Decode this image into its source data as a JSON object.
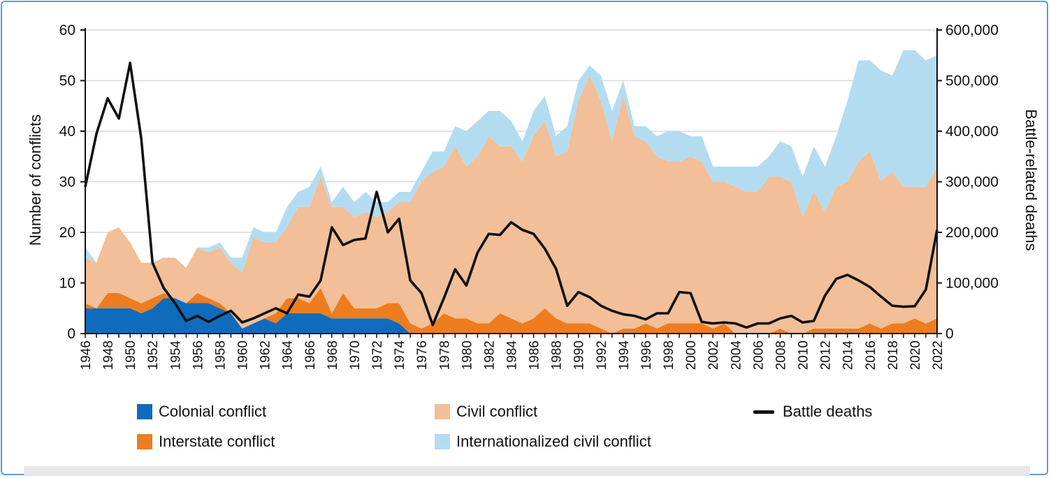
{
  "chart_data": {
    "type": "area",
    "xlabel": "",
    "ylabel": "Number of conflicts",
    "y2label": "Battle-related deaths",
    "ylim": [
      0,
      60
    ],
    "y2lim": [
      0,
      600000
    ],
    "yticks": [
      "0",
      "10",
      "20",
      "30",
      "40",
      "50",
      "60"
    ],
    "y2ticks": [
      "0",
      "100,000",
      "200,000",
      "300,000",
      "400,000",
      "500,000",
      "600,000"
    ],
    "grid": "horizontal",
    "legend_position": "bottom",
    "x": [
      1946,
      1947,
      1948,
      1949,
      1950,
      1951,
      1952,
      1953,
      1954,
      1955,
      1956,
      1957,
      1958,
      1959,
      1960,
      1961,
      1962,
      1963,
      1964,
      1965,
      1966,
      1967,
      1968,
      1969,
      1970,
      1971,
      1972,
      1973,
      1974,
      1975,
      1976,
      1977,
      1978,
      1979,
      1980,
      1981,
      1982,
      1983,
      1984,
      1985,
      1986,
      1987,
      1988,
      1989,
      1990,
      1991,
      1992,
      1993,
      1994,
      1995,
      1996,
      1997,
      1998,
      1999,
      2000,
      2001,
      2002,
      2003,
      2004,
      2005,
      2006,
      2007,
      2008,
      2009,
      2010,
      2011,
      2012,
      2013,
      2014,
      2015,
      2016,
      2017,
      2018,
      2019,
      2020,
      2021,
      2022
    ],
    "xticks": [
      "1946",
      "1948",
      "1950",
      "1952",
      "1954",
      "1956",
      "1958",
      "1960",
      "1962",
      "1964",
      "1966",
      "1968",
      "1970",
      "1972",
      "1974",
      "1976",
      "1978",
      "1980",
      "1982",
      "1984",
      "1986",
      "1988",
      "1990",
      "1992",
      "1994",
      "1996",
      "1998",
      "2000",
      "2002",
      "2004",
      "2006",
      "2008",
      "2010",
      "2012",
      "2014",
      "2016",
      "2018",
      "2020",
      "2022"
    ],
    "series": [
      {
        "name": "Colonial conflict",
        "color": "#0f6cbd",
        "kind": "stacked-area",
        "values": [
          5,
          5,
          5,
          5,
          5,
          4,
          5,
          7,
          7,
          6,
          6,
          6,
          5,
          4,
          1,
          2,
          3,
          2,
          4,
          4,
          4,
          4,
          3,
          3,
          3,
          3,
          3,
          3,
          2,
          0,
          0,
          0,
          0,
          0,
          0,
          0,
          0,
          0,
          0,
          0,
          0,
          0,
          0,
          0,
          0,
          0,
          0,
          0,
          0,
          0,
          0,
          0,
          0,
          0,
          0,
          0,
          0,
          0,
          0,
          0,
          0,
          0,
          0,
          0,
          0,
          0,
          0,
          0,
          0,
          0,
          0,
          0,
          0,
          0,
          0,
          0,
          0
        ]
      },
      {
        "name": "Interstate conflict",
        "color": "#ed7d1e",
        "kind": "stacked-area",
        "values": [
          1,
          0,
          3,
          3,
          2,
          2,
          2,
          1,
          0,
          0,
          2,
          1,
          1,
          0,
          0,
          0,
          0,
          2,
          3,
          3,
          2,
          5,
          1,
          5,
          2,
          2,
          2,
          3,
          4,
          2,
          1,
          2,
          4,
          3,
          3,
          2,
          2,
          4,
          3,
          2,
          3,
          5,
          3,
          2,
          2,
          2,
          1,
          0,
          1,
          1,
          2,
          1,
          2,
          2,
          2,
          2,
          1,
          2,
          0,
          0,
          0,
          0,
          1,
          0,
          0,
          1,
          1,
          1,
          1,
          1,
          2,
          1,
          2,
          2,
          3,
          2,
          3
        ]
      },
      {
        "name": "Civil conflict",
        "color": "#f2bf98",
        "kind": "stacked-area",
        "values": [
          9,
          9,
          12,
          13,
          11,
          8,
          7,
          7,
          8,
          7,
          9,
          9,
          11,
          10,
          11,
          17,
          15,
          14,
          14,
          18,
          19,
          22,
          21,
          17,
          18,
          19,
          18,
          18,
          20,
          24,
          29,
          30,
          29,
          34,
          30,
          33,
          37,
          33,
          34,
          32,
          36,
          37,
          32,
          34,
          44,
          49,
          45,
          38,
          46,
          38,
          36,
          34,
          32,
          32,
          33,
          32,
          29,
          28,
          29,
          28,
          28,
          31,
          30,
          30,
          23,
          27,
          23,
          28,
          29,
          33,
          34,
          29,
          30,
          27,
          26,
          27,
          30
        ]
      },
      {
        "name": "Internationalized civil conflict",
        "color": "#b4dcf0",
        "kind": "stacked-area",
        "values": [
          2,
          0,
          0,
          0,
          0,
          0,
          0,
          0,
          0,
          0,
          0,
          1,
          1,
          1,
          3,
          2,
          2,
          2,
          4,
          3,
          4,
          2,
          1,
          4,
          3,
          4,
          3,
          2,
          2,
          2,
          2,
          4,
          3,
          4,
          7,
          7,
          5,
          7,
          5,
          4,
          5,
          5,
          4,
          5,
          4,
          2,
          5,
          6,
          3,
          2,
          3,
          4,
          6,
          6,
          4,
          5,
          3,
          3,
          4,
          5,
          5,
          4,
          7,
          7,
          8,
          9,
          9,
          10,
          16,
          20,
          18,
          22,
          19,
          27,
          27,
          25,
          22
        ]
      },
      {
        "name": "Battle deaths",
        "color": "#111111",
        "kind": "line",
        "axis": "right",
        "values": [
          290000,
          395000,
          465000,
          425000,
          535000,
          385000,
          140000,
          90000,
          60000,
          25000,
          35000,
          23000,
          35000,
          45000,
          22000,
          30000,
          40000,
          50000,
          40000,
          77000,
          73000,
          105000,
          210000,
          175000,
          185000,
          188000,
          280000,
          200000,
          227000,
          105000,
          80000,
          17000,
          70000,
          127000,
          95000,
          160000,
          197000,
          195000,
          220000,
          205000,
          197000,
          168000,
          128000,
          55000,
          82000,
          72000,
          55000,
          45000,
          38000,
          35000,
          28000,
          40000,
          40000,
          82000,
          80000,
          23000,
          20000,
          22000,
          20000,
          12000,
          20000,
          20000,
          30000,
          35000,
          22000,
          25000,
          75000,
          108000,
          116000,
          105000,
          92000,
          73000,
          55000,
          53000,
          54000,
          87000,
          205000
        ]
      }
    ]
  }
}
